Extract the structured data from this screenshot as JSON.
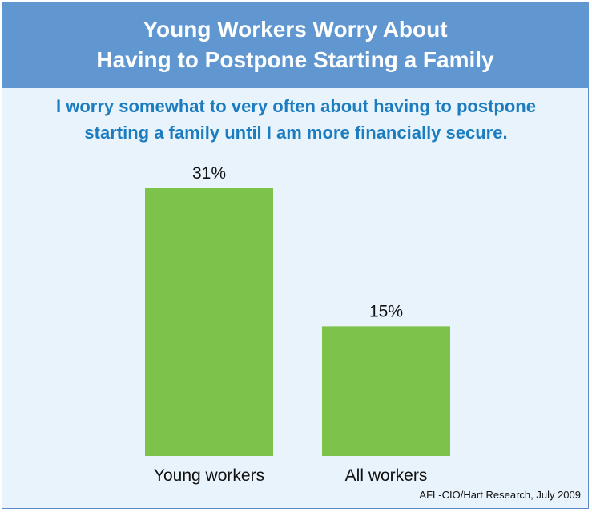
{
  "header": {
    "title_lines": [
      "Young Workers Worry About",
      "Having to Postpone Starting a Family"
    ]
  },
  "subtitle_lines": [
    "I worry somewhat to very often about having to postpone",
    "starting a family until I am more financially secure."
  ],
  "source": "AFL-CIO/Hart Research, July 2009",
  "colors": {
    "header_bg": "#6097d0",
    "panel_bg": "#e9f3fb",
    "subtitle_text": "#1b7dc0",
    "bar_fill": "#7dc24b"
  },
  "chart_data": {
    "type": "bar",
    "title": "Young Workers Worry About Having to Postpone Starting a Family",
    "subtitle": "I worry somewhat to very often about having to postpone starting a family until I am more financially secure.",
    "categories": [
      "Young workers",
      "All workers"
    ],
    "values": [
      31,
      15
    ],
    "value_labels": [
      "31%",
      "15%"
    ],
    "unit": "%",
    "ylim": [
      0,
      31
    ],
    "grid": false,
    "legend": "none"
  }
}
